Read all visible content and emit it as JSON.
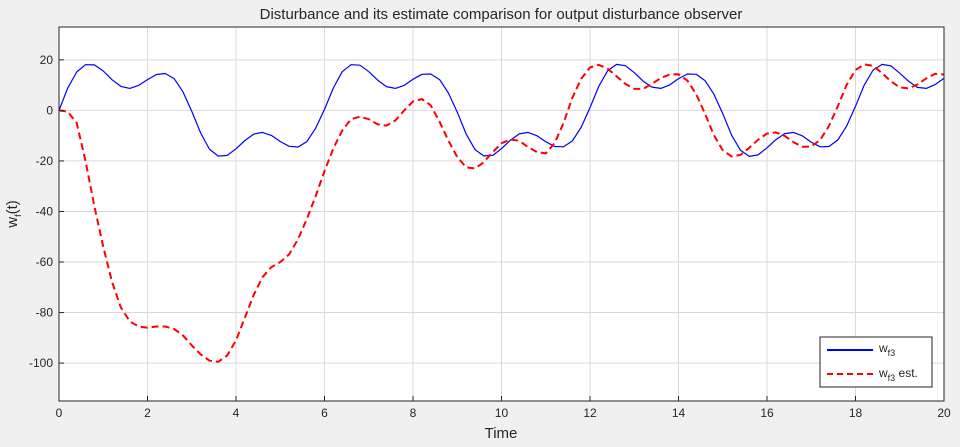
{
  "chart_data": {
    "type": "line",
    "title": "Disturbance and its estimate comparison for output disturbance observer",
    "xlabel": "Time",
    "ylabel": {
      "main": "w",
      "sub": "f",
      "suffix": "(t)"
    },
    "xlim": [
      0,
      20
    ],
    "ylim": [
      -115,
      33
    ],
    "xticks": [
      0,
      2,
      4,
      6,
      8,
      10,
      12,
      14,
      16,
      18,
      20
    ],
    "yticks": [
      -100,
      -80,
      -60,
      -40,
      -20,
      0,
      20
    ],
    "grid": true,
    "legend_position": "bottom-right",
    "series": [
      {
        "name": "wf3",
        "name_main": "w",
        "name_sub": "f3",
        "name_suffix": "",
        "color": "#0000ff",
        "style": "solid",
        "x": [
          0,
          0.2,
          0.4,
          0.6,
          0.8,
          1.0,
          1.2,
          1.4,
          1.6,
          1.8,
          2.0,
          2.2,
          2.4,
          2.6,
          2.8,
          3.0,
          3.2,
          3.4,
          3.6,
          3.8,
          4.0,
          4.2,
          4.4,
          4.6,
          4.8,
          5.0,
          5.2,
          5.4,
          5.6,
          5.8,
          6.0,
          6.2,
          6.4,
          6.6,
          6.8,
          7.0,
          7.2,
          7.4,
          7.6,
          7.8,
          8.0,
          8.2,
          8.4,
          8.6,
          8.8,
          9.0,
          9.2,
          9.4,
          9.6,
          9.8,
          10.0,
          10.2,
          10.4,
          10.6,
          10.8,
          11.0,
          11.2,
          11.4,
          11.6,
          11.8,
          12.0,
          12.2,
          12.4,
          12.6,
          12.8,
          13.0,
          13.2,
          13.4,
          13.6,
          13.8,
          14.0,
          14.2,
          14.4,
          14.6,
          14.8,
          15.0,
          15.2,
          15.4,
          15.6,
          15.8,
          16.0,
          16.2,
          16.4,
          16.6,
          16.8,
          17.0,
          17.2,
          17.4,
          17.6,
          17.8,
          18.0,
          18.2,
          18.4,
          18.6,
          18.8,
          19.0,
          19.2,
          19.4,
          19.6,
          19.8,
          20.0
        ],
        "y": [
          0,
          8.9,
          15.2,
          18.1,
          18.0,
          15.6,
          12.1,
          9.5,
          8.7,
          9.9,
          12.2,
          14.2,
          14.6,
          12.6,
          7.4,
          -0.4,
          -8.9,
          -15.3,
          -18.1,
          -17.8,
          -15.2,
          -11.9,
          -9.4,
          -8.7,
          -9.9,
          -12.3,
          -14.2,
          -14.5,
          -12.4,
          -7.1,
          0.4,
          8.9,
          15.3,
          18.1,
          17.9,
          15.3,
          12.0,
          9.4,
          8.7,
          9.9,
          12.3,
          14.3,
          14.4,
          12.2,
          6.9,
          -0.7,
          -9.3,
          -15.5,
          -18.0,
          -17.8,
          -15.1,
          -11.8,
          -9.3,
          -8.7,
          -10.0,
          -12.4,
          -14.3,
          -14.4,
          -12.1,
          -6.7,
          1.1,
          9.6,
          15.7,
          18.2,
          17.7,
          14.9,
          11.6,
          9.2,
          8.7,
          10.1,
          12.6,
          14.4,
          14.3,
          11.8,
          6.4,
          -1.3,
          -9.8,
          -15.8,
          -18.2,
          -17.6,
          -14.8,
          -11.6,
          -9.2,
          -8.7,
          -10.1,
          -12.6,
          -14.4,
          -14.3,
          -11.7,
          -6.2,
          1.6,
          10.1,
          16.0,
          18.2,
          17.6,
          14.7,
          11.5,
          9.1,
          8.7,
          10.2,
          12.7
        ]
      },
      {
        "name": "wf3 est.",
        "name_main": "w",
        "name_sub": "f3",
        "name_suffix": " est.",
        "color": "#ff0000",
        "style": "dashed",
        "x": [
          0,
          0.2,
          0.4,
          0.6,
          0.8,
          1.0,
          1.2,
          1.4,
          1.6,
          1.8,
          2.0,
          2.2,
          2.4,
          2.6,
          2.8,
          3.0,
          3.2,
          3.4,
          3.6,
          3.8,
          4.0,
          4.2,
          4.4,
          4.6,
          4.8,
          5.0,
          5.2,
          5.4,
          5.6,
          5.8,
          6.0,
          6.2,
          6.4,
          6.6,
          6.8,
          7.0,
          7.2,
          7.4,
          7.6,
          7.8,
          8.0,
          8.2,
          8.4,
          8.6,
          8.8,
          9.0,
          9.2,
          9.4,
          9.6,
          9.8,
          10.0,
          10.2,
          10.4,
          10.6,
          10.8,
          11.0,
          11.2,
          11.4,
          11.6,
          11.8,
          12.0,
          12.2,
          12.4,
          12.6,
          12.8,
          13.0,
          13.2,
          13.4,
          13.6,
          13.8,
          14.0,
          14.2,
          14.4,
          14.6,
          14.8,
          15.0,
          15.2,
          15.4,
          15.6,
          15.8,
          16.0,
          16.2,
          16.4,
          16.6,
          16.8,
          17.0,
          17.2,
          17.4,
          17.6,
          17.8,
          18.0,
          18.2,
          18.4,
          18.6,
          18.8,
          19.0,
          19.2,
          19.4,
          19.6,
          19.8,
          20.0
        ],
        "y": [
          0,
          -0.5,
          -5,
          -20,
          -38,
          -54,
          -68,
          -78,
          -83.5,
          -85.5,
          -86,
          -85.5,
          -85.5,
          -86.5,
          -89,
          -93,
          -96.5,
          -99,
          -99.5,
          -97,
          -91,
          -82,
          -73,
          -66,
          -62,
          -60,
          -57,
          -51,
          -43,
          -34,
          -24,
          -15,
          -8,
          -3.5,
          -2.5,
          -3.5,
          -5.5,
          -6,
          -4,
          0,
          3.5,
          4.5,
          2,
          -4.5,
          -12,
          -18.5,
          -22.5,
          -23,
          -20.5,
          -16.5,
          -13,
          -11.5,
          -12,
          -14.5,
          -16.5,
          -17,
          -13,
          -5,
          5,
          12.5,
          17,
          18,
          16.5,
          13.5,
          10.5,
          8.5,
          8.5,
          10.5,
          12.8,
          14.2,
          14.3,
          11.8,
          6.4,
          -1.3,
          -9.8,
          -15.8,
          -18.2,
          -17.6,
          -14.8,
          -11.6,
          -9.2,
          -8.7,
          -10.1,
          -12.6,
          -14.4,
          -14.3,
          -11.7,
          -6.2,
          1.6,
          10.1,
          16.0,
          18.2,
          17.6,
          14.7,
          11.5,
          9.1,
          8.7,
          10.2,
          12.7,
          14.5,
          14.2
        ]
      }
    ]
  }
}
